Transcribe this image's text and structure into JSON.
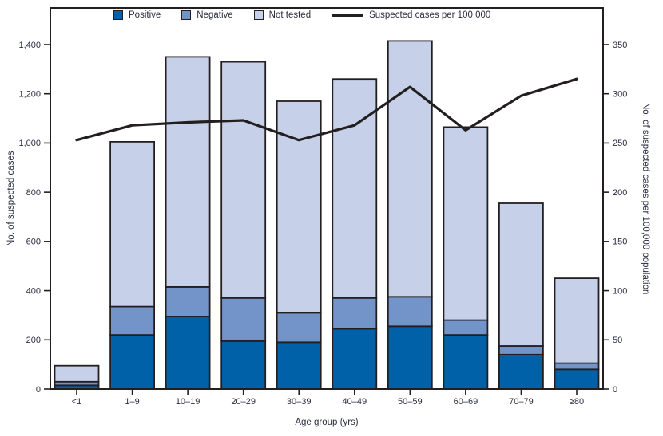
{
  "colors": {
    "positive": "#0061a9",
    "negative": "#7394c9",
    "not_tested": "#c6d0e8",
    "line": "#231f20",
    "outline": "#231f20",
    "text": "#2b2e40",
    "background": "#ffffff"
  },
  "legend": {
    "items": [
      {
        "label": "Positive",
        "type": "swatch",
        "color": "#0061a9"
      },
      {
        "label": "Negative",
        "type": "swatch",
        "color": "#7394c9"
      },
      {
        "label": "Not tested",
        "type": "swatch",
        "color": "#c6d0e8"
      },
      {
        "label": "Suspected cases per 100,000",
        "type": "line",
        "color": "#231f20"
      }
    ]
  },
  "axes": {
    "left": {
      "label": "No. of suspected cases",
      "ticks": [
        {
          "v": 0,
          "t": "0"
        },
        {
          "v": 200,
          "t": "200"
        },
        {
          "v": 400,
          "t": "400"
        },
        {
          "v": 600,
          "t": "600"
        },
        {
          "v": 800,
          "t": "800"
        },
        {
          "v": 1000,
          "t": "1,000"
        },
        {
          "v": 1200,
          "t": "1,200"
        },
        {
          "v": 1400,
          "t": "1,400"
        }
      ]
    },
    "right": {
      "label": "No. of suspected cases per 100,000 population",
      "ticks": [
        {
          "v": 0,
          "t": "0"
        },
        {
          "v": 50,
          "t": "50"
        },
        {
          "v": 100,
          "t": "100"
        },
        {
          "v": 150,
          "t": "150"
        },
        {
          "v": 200,
          "t": "200"
        },
        {
          "v": 250,
          "t": "250"
        },
        {
          "v": 300,
          "t": "300"
        },
        {
          "v": 350,
          "t": "350"
        }
      ]
    },
    "x": {
      "label": "Age group (yrs)"
    }
  },
  "chart_data": {
    "type": "bar",
    "subtype": "stacked-bars-with-line-overlay",
    "title": "",
    "xlabel": "Age group (yrs)",
    "ylabel_left": "No. of suspected cases",
    "ylabel_right": "No. of suspected cases per 100,000 population",
    "ylim_left": [
      0,
      1550
    ],
    "ylim_right": [
      0,
      387
    ],
    "grid": false,
    "legend_position": "top-inside",
    "categories": [
      "<1",
      "1–9",
      "10–19",
      "20–29",
      "30–39",
      "40–49",
      "50–59",
      "60–69",
      "70–79",
      "≥80"
    ],
    "series": [
      {
        "name": "Positive",
        "color": "#0061a9",
        "values": [
          15,
          220,
          295,
          195,
          190,
          245,
          255,
          220,
          140,
          80
        ]
      },
      {
        "name": "Negative",
        "color": "#7394c9",
        "values": [
          15,
          115,
          120,
          175,
          120,
          125,
          120,
          60,
          35,
          25
        ]
      },
      {
        "name": "Not tested",
        "color": "#c6d0e8",
        "values": [
          65,
          670,
          935,
          960,
          860,
          890,
          1040,
          785,
          580,
          345
        ]
      }
    ],
    "bar_totals": [
      95,
      1005,
      1350,
      1330,
      1170,
      1260,
      1415,
      1065,
      755,
      450
    ],
    "line_series": {
      "name": "Suspected cases per 100,000",
      "color": "#231f20",
      "axis": "right",
      "values": [
        253,
        268,
        271,
        273,
        253,
        268,
        307,
        263,
        298,
        315
      ]
    }
  }
}
